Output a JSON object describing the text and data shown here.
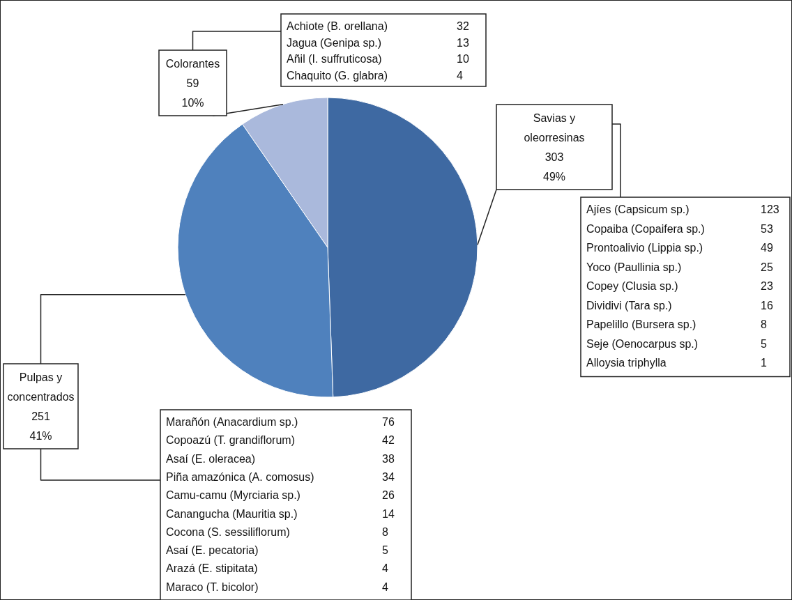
{
  "chart_data": {
    "type": "pie",
    "categories": [
      "Savias y oleorresinas",
      "Pulpas y concentrados",
      "Colorantes"
    ],
    "values": [
      303,
      251,
      59
    ],
    "colors": [
      "#3e69a2",
      "#4f81bd",
      "#aab9dc"
    ],
    "value_labels": [
      "303 49%",
      "251 41%",
      "59 10%"
    ],
    "annotations": [
      "Ajíes (Capsicum sp.) 123",
      "Copaiba (Copaifera sp.) 53",
      "Prontoalivio (Lippia sp.) 49",
      "Yoco (Paullinia sp.) 25",
      "Copey (Clusia sp.) 23",
      "Dividivi (Tara sp.) 16",
      "Papelillo (Bursera sp.) 8",
      "Seje (Oenocarpus sp.) 5",
      "Alloysia triphylla 1",
      "Marañón (Anacardium sp.) 76",
      "Copoazú (T. grandiflorum) 42",
      "Asaí (E. oleracea) 38",
      "Piña amazónica (A. comosus) 34",
      "Camu-camu (Myrciaria sp.) 26",
      "Canangucha (Mauritia sp.) 14",
      "Cocona (S. sessiliflorum) 8",
      "Asaí (E. pecatoria) 5",
      "Arazá (E. stipitata) 4",
      "Maraco (T. bicolor) 4",
      "Achiote (B. orellana) 32",
      "Jagua (Genipa sp.) 13",
      "Añil (I. suffruticosa) 10",
      "Chaquito (G. glabra) 4"
    ]
  }
}
